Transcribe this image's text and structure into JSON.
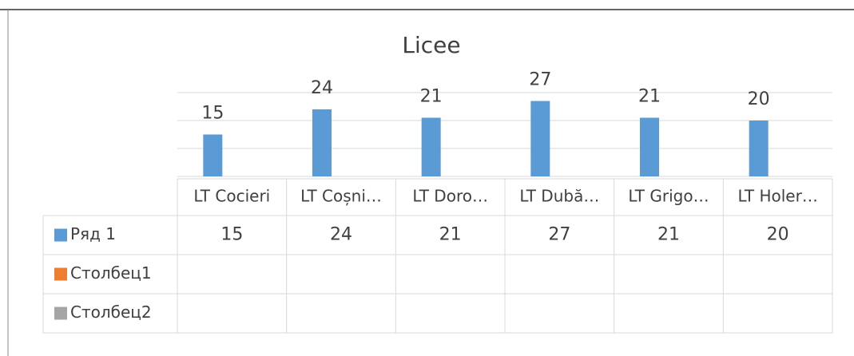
{
  "chart_data": {
    "type": "bar",
    "title": "Licee",
    "categories": [
      "LT Cocieri",
      "LT Coșni…",
      "LT Doro…",
      "LT Dubă…",
      "LT Grigo…",
      "LT Holer…"
    ],
    "series": [
      {
        "name": "Ряд 1",
        "color": "#5b9bd5",
        "values": [
          15,
          24,
          21,
          27,
          21,
          20
        ]
      },
      {
        "name": "Столбец1",
        "color": "#ed7d31",
        "values": [
          null,
          null,
          null,
          null,
          null,
          null
        ]
      },
      {
        "name": "Столбец2",
        "color": "#a5a5a5",
        "values": [
          null,
          null,
          null,
          null,
          null,
          null
        ]
      }
    ],
    "ylim": [
      0,
      30
    ],
    "yticks": [
      0,
      10,
      20,
      30
    ],
    "grid": true,
    "data_table": true
  }
}
